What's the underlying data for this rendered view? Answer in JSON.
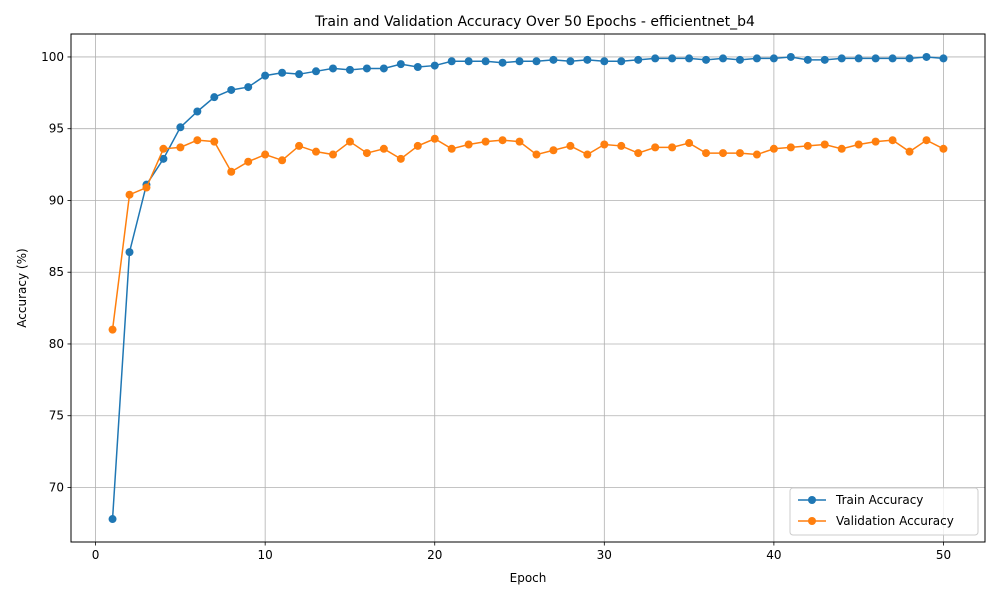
{
  "chart_data": {
    "type": "line",
    "title": "Train and Validation Accuracy Over 50 Epochs - efficientnet_b4",
    "xlabel": "Epoch",
    "ylabel": "Accuracy (%)",
    "xlim": [
      -1.45,
      52.45
    ],
    "ylim": [
      66.2,
      101.6
    ],
    "xticks": [
      0,
      10,
      20,
      30,
      40,
      50
    ],
    "yticks": [
      70,
      75,
      80,
      85,
      90,
      95,
      100
    ],
    "grid": true,
    "legend_position": "lower-right",
    "x": [
      1,
      2,
      3,
      4,
      5,
      6,
      7,
      8,
      9,
      10,
      11,
      12,
      13,
      14,
      15,
      16,
      17,
      18,
      19,
      20,
      21,
      22,
      23,
      24,
      25,
      26,
      27,
      28,
      29,
      30,
      31,
      32,
      33,
      34,
      35,
      36,
      37,
      38,
      39,
      40,
      41,
      42,
      43,
      44,
      45,
      46,
      47,
      48,
      49,
      50
    ],
    "series": [
      {
        "name": "Train Accuracy",
        "color": "#1f77b4",
        "values": [
          67.8,
          86.4,
          91.1,
          92.9,
          95.1,
          96.2,
          97.2,
          97.7,
          97.9,
          98.7,
          98.9,
          98.8,
          99.0,
          99.2,
          99.1,
          99.2,
          99.2,
          99.5,
          99.3,
          99.4,
          99.7,
          99.7,
          99.7,
          99.6,
          99.7,
          99.7,
          99.8,
          99.7,
          99.8,
          99.7,
          99.7,
          99.8,
          99.9,
          99.9,
          99.9,
          99.8,
          99.9,
          99.8,
          99.9,
          99.9,
          100.0,
          99.8,
          99.8,
          99.9,
          99.9,
          99.9,
          99.9,
          99.9,
          100.0,
          99.9
        ]
      },
      {
        "name": "Validation Accuracy",
        "color": "#ff7f0e",
        "values": [
          81.0,
          90.4,
          90.9,
          93.6,
          93.7,
          94.2,
          94.1,
          92.0,
          92.7,
          93.2,
          92.8,
          93.8,
          93.4,
          93.2,
          94.1,
          93.3,
          93.6,
          92.9,
          93.8,
          94.3,
          93.6,
          93.9,
          94.1,
          94.2,
          94.1,
          93.2,
          93.5,
          93.8,
          93.2,
          93.9,
          93.8,
          93.3,
          93.7,
          93.7,
          94.0,
          93.3,
          93.3,
          93.3,
          93.2,
          93.6,
          93.7,
          93.8,
          93.9,
          93.6,
          93.9,
          94.1,
          94.2,
          93.4,
          94.2,
          93.6
        ]
      }
    ]
  }
}
